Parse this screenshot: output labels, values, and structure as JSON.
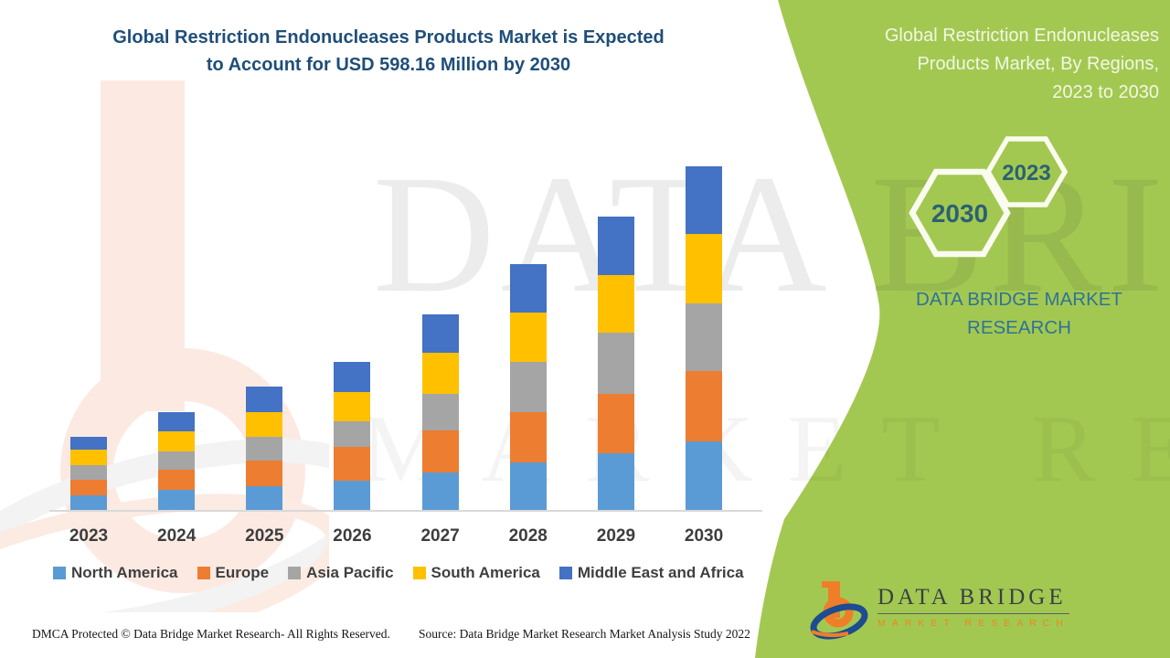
{
  "header": {
    "title_line1": "Global Restriction Endonucleases Products Market is Expected",
    "title_line2": "to Account for USD 598.16 Million by 2030"
  },
  "side_panel": {
    "title_line1": "Global Restriction Endonucleases",
    "title_line2": "Products Market, By Regions,",
    "title_line3": "2023 to 2030",
    "hex_year_small": "2023",
    "hex_year_large": "2030",
    "brand_line1": "DATA BRIDGE MARKET",
    "brand_line2": "RESEARCH"
  },
  "watermarks": {
    "row1": "DATA BRIDGE",
    "row2": "MARKET RESEARCH"
  },
  "chart_data": {
    "type": "bar",
    "stacked": true,
    "unit": "USD Million",
    "title": "Global Restriction Endonucleases Products Market, By Regions, 2023 to 2030",
    "categories": [
      "2023",
      "2024",
      "2025",
      "2026",
      "2027",
      "2028",
      "2029",
      "2030"
    ],
    "series": [
      {
        "name": "North America",
        "color": "#5B9BD5",
        "values": [
          25.4,
          35.0,
          41.4,
          50.9,
          65.2,
          82.7,
          98.6,
          119.3
        ]
      },
      {
        "name": "Europe",
        "color": "#ED7D31",
        "values": [
          27.0,
          35.0,
          44.5,
          58.9,
          73.2,
          87.5,
          103.4,
          122.5
        ]
      },
      {
        "name": "Asia Pacific",
        "color": "#A5A5A5",
        "values": [
          25.4,
          31.8,
          41.4,
          44.5,
          63.6,
          87.5,
          106.6,
          117.7
        ]
      },
      {
        "name": "South America",
        "color": "#FFC000",
        "values": [
          27.0,
          35.0,
          42.9,
          50.9,
          71.6,
          85.9,
          100.2,
          120.9
        ]
      },
      {
        "name": "Middle East and Africa",
        "color": "#4472C4",
        "values": [
          22.3,
          33.4,
          44.5,
          52.5,
          66.8,
          84.3,
          101.8,
          117.8
        ]
      }
    ],
    "totals": [
      127.2,
      170.2,
      214.7,
      257.7,
      340.4,
      427.9,
      510.6,
      598.16
    ],
    "ylim": [
      0,
      600
    ],
    "grid": false,
    "legend_position": "bottom"
  },
  "logo": {
    "brand": "DATA BRIDGE",
    "sub": "MARKET RESEARCH"
  },
  "footer": {
    "dmca": "DMCA Protected © Data Bridge Market Research- All Rights Reserved.",
    "source": "Source: Data Bridge Market Research Market Analysis Study 2022"
  },
  "colors": {
    "panel_green": "#A3C851",
    "title_navy": "#1F4E79",
    "side_title_text": "#F2F7E5",
    "hex_text_teal": "#2B6173",
    "brand_teal": "#2F7396",
    "axis_gray": "#D9D9D9",
    "label_gray": "#3D3D3D"
  }
}
